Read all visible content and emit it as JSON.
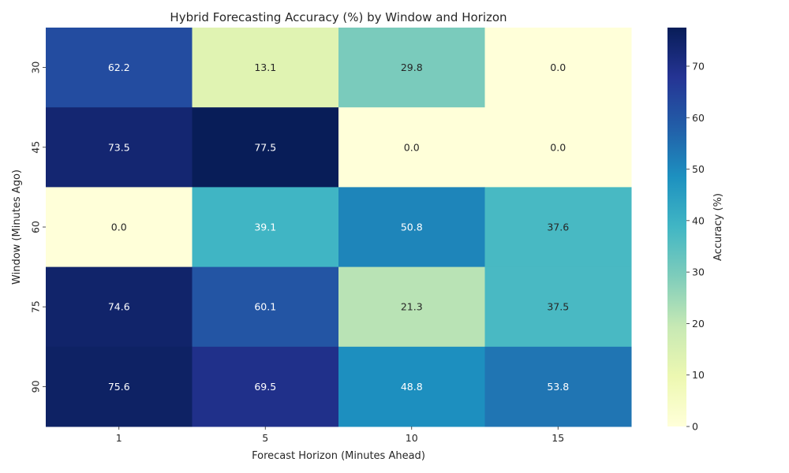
{
  "chart_data": {
    "type": "heatmap",
    "title": "Hybrid Forecasting Accuracy (%) by Window and Horizon",
    "xlabel": "Forecast Horizon (Minutes Ahead)",
    "ylabel": "Window (Minutes Ago)",
    "x_categories": [
      "1",
      "5",
      "10",
      "15"
    ],
    "y_categories": [
      "30",
      "45",
      "60",
      "75",
      "90"
    ],
    "values": [
      [
        62.2,
        13.1,
        29.8,
        0.0
      ],
      [
        73.5,
        77.5,
        0.0,
        0.0
      ],
      [
        0.0,
        39.1,
        50.8,
        37.6
      ],
      [
        74.6,
        60.1,
        21.3,
        37.5
      ],
      [
        75.6,
        69.5,
        48.8,
        53.8
      ]
    ],
    "colorbar": {
      "label": "Accuracy (%)",
      "range": [
        0,
        77.5
      ],
      "ticks": [
        "0",
        "10",
        "20",
        "30",
        "40",
        "50",
        "60",
        "70"
      ],
      "colormap": "YlGnBu"
    }
  }
}
